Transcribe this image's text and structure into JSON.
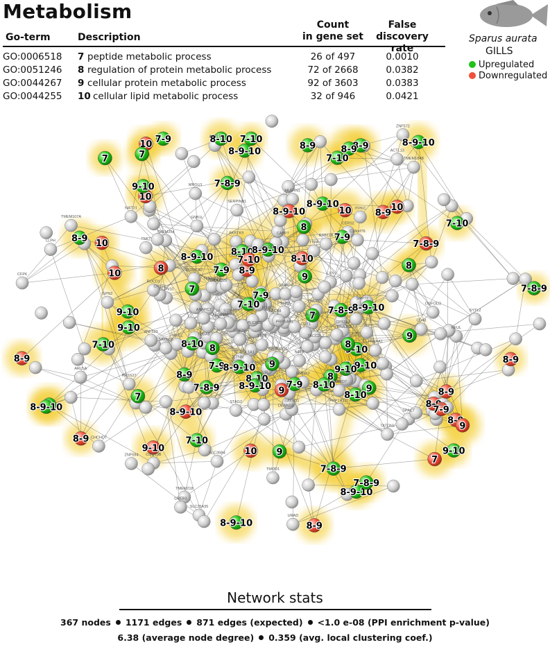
{
  "header": {
    "title": "Metabolism",
    "col_go": "Go-term",
    "col_desc": "Description",
    "col_count": "Count in gene set",
    "col_count_l1": "Count",
    "col_count_l2": "in gene set",
    "col_fdr_l1": "False discovery",
    "col_fdr_l2": "rate"
  },
  "go_terms": [
    {
      "id": "GO:0006518",
      "num": "7",
      "desc": "peptide metabolic process",
      "count": "26 of 497",
      "fdr": "0.0010"
    },
    {
      "id": "GO:0051246",
      "num": "8",
      "desc": "regulation of protein metabolic process",
      "count": "72 of 2668",
      "fdr": "0.0382"
    },
    {
      "id": "GO:0044267",
      "num": "9",
      "desc": "cellular protein metabolic process",
      "count": "92 of 3603",
      "fdr": "0.0383"
    },
    {
      "id": "GO:0044255",
      "num": "10",
      "desc": "cellular lipid metabolic process",
      "count": "32 of 946",
      "fdr": "0.0421"
    }
  ],
  "legend": {
    "species": "Sparus aurata",
    "tissue": "GILLS",
    "up_label": "Upregulated",
    "down_label": "Downregulated",
    "up_color": "#22c21a",
    "down_color": "#f0503a",
    "fish_icon": "fish-icon"
  },
  "network": {
    "labeled_nodes": [
      {
        "label": "7-9",
        "state": "up"
      },
      {
        "label": "7-8-9",
        "state": "up"
      },
      {
        "label": "9",
        "state": "up"
      },
      {
        "label": "8",
        "state": "up"
      },
      {
        "label": "10",
        "state": "down"
      },
      {
        "label": "8-9-10",
        "state": "up"
      },
      {
        "label": "8-10",
        "state": "up"
      },
      {
        "label": "9-10",
        "state": "up"
      },
      {
        "label": "8-9",
        "state": "up"
      },
      {
        "label": "7-10",
        "state": "up"
      },
      {
        "label": "8-9",
        "state": "down"
      },
      {
        "label": "8-9-10",
        "state": "up"
      },
      {
        "label": "7",
        "state": "up"
      }
    ],
    "gene_labels": [
      "TMEM184B",
      "TMEM254",
      "TNKT",
      "SPACT",
      "CFP6",
      "TATDN3",
      "TMEM218",
      "ZNF594",
      "NATD1",
      "PRSS27",
      "LRRC45",
      "SYTL2",
      "ARLSA",
      "MUSTN1",
      "SLC35B4",
      "CHCHD7",
      "COQ10B",
      "GPN2",
      "URAD",
      "ITPKC",
      "GNB1L",
      "CD48",
      "TMOD1",
      "ACTL6",
      "SERPINB1",
      "TMEM107A",
      "MRGU1",
      "CREB3",
      "ZNF572",
      "LLPH",
      "ACTL13",
      "OGFOD3",
      "TACC2",
      "DNAJC25",
      "S100A1",
      "PRPSAP1",
      "WDR20",
      "PPP1R13L",
      "SPRYD7",
      "DENND3",
      "CABP7",
      "DNAJB6",
      "TUBA8",
      "HYPK",
      "C18orf76",
      "FOXC1",
      "AKRTK9",
      "PSEN1",
      "TMEM230",
      "ALKBH5",
      "SAYSD1",
      "CLDN10",
      "BCL9L",
      "GIMAP4",
      "PLCXD1",
      "THG1L",
      "TMM5",
      "NATP",
      "CHPT1",
      "COX15",
      "LXN",
      "ROCD1",
      "SRP72",
      "ANAPC7",
      "ZNF593",
      "HMOX2",
      "CPS1L1",
      "STAG2",
      "CTNN",
      "YWHAE",
      "PRKAA1",
      "UBE2S",
      "PSMB5",
      "SEC61",
      "BAK1",
      "CDC42",
      "TTC8",
      "ACTN2",
      "COL1A1",
      "RAB11B",
      "CDT1",
      "SAYSD2",
      "SMARCD1",
      "TTPA",
      "ALDH4A1",
      "ALDH1A2",
      "ABCB8",
      "GFK1",
      "CERS2",
      "NEUL",
      "SLC25A35"
    ],
    "colors": {
      "highlight": "#f2c81e",
      "node_grey": "#c8c8c8",
      "edge": "#555555"
    }
  },
  "stats": {
    "title": "Network stats",
    "nodes": "367 nodes",
    "edges": "1171 edges",
    "expected": "871 edges (expected)",
    "pval": "<1.0 e-08 (PPI enrichment p-value)",
    "degree": "6.38 (average node degree)",
    "clustering": "0.359 (avg. local clustering coef.)"
  }
}
